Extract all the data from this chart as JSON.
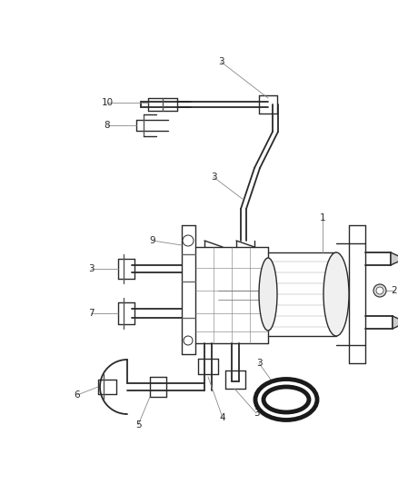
{
  "bg_color": "#ffffff",
  "line_color": "#2a2a2a",
  "leader_color": "#888888",
  "label_color": "#2a2a2a",
  "fig_width": 4.38,
  "fig_height": 5.33,
  "dpi": 100,
  "lw_body": 1.0,
  "lw_pipe": 1.3,
  "lw_leader": 0.6,
  "label_fs": 7.5
}
